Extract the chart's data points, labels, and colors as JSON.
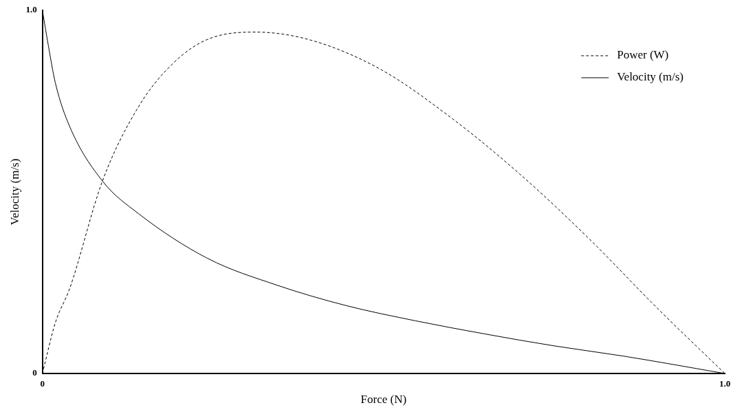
{
  "chart_data": {
    "type": "line",
    "xlabel": "Force (N)",
    "ylabel": "Velocity (m/s)",
    "xlim": [
      0,
      1
    ],
    "ylim": [
      0,
      1
    ],
    "xticks": [
      0,
      {
        "value": 1,
        "label": "1.0"
      }
    ],
    "yticks": [
      0,
      {
        "value": 1,
        "label": "1.0"
      }
    ],
    "grid": false,
    "legend": "top right",
    "marker": "none",
    "series": [
      {
        "name": "Power (W)",
        "color": "#000000",
        "line_style": "dashed",
        "x": [
          0,
          0.019,
          0.04,
          0.088,
          0.141,
          0.192,
          0.242,
          0.313,
          0.395,
          0.496,
          0.597,
          0.699,
          0.8,
          0.902,
          1
        ],
        "values": [
          0,
          0.14,
          0.234,
          0.53,
          0.735,
          0.855,
          0.92,
          0.94,
          0.917,
          0.837,
          0.707,
          0.55,
          0.373,
          0.178,
          0
        ]
      },
      {
        "name": "Velocity (m/s)",
        "color": "#000000",
        "line_style": "solid",
        "x": [
          0,
          0.009,
          0.019,
          0.04,
          0.088,
          0.141,
          0.242,
          0.344,
          0.445,
          0.547,
          0.648,
          0.75,
          0.851,
          1
        ],
        "values": [
          1,
          0.9,
          0.8,
          0.68,
          0.53,
          0.44,
          0.317,
          0.243,
          0.187,
          0.145,
          0.109,
          0.076,
          0.048,
          0
        ]
      }
    ]
  }
}
